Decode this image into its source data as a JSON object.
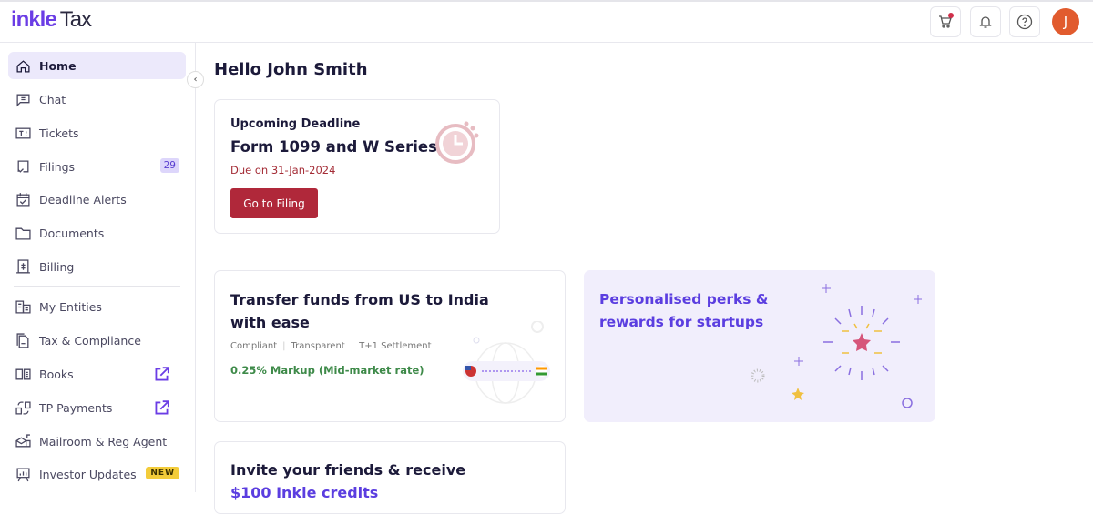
{
  "header": {
    "logo_primary": "inkle",
    "logo_secondary": "Tax",
    "avatar_initial": "J",
    "cart_has_notification": true
  },
  "sidebar": {
    "items": [
      {
        "label": "Home",
        "icon": "home-icon",
        "active": true
      },
      {
        "label": "Chat",
        "icon": "chat-icon"
      },
      {
        "label": "Tickets",
        "icon": "ticket-icon"
      },
      {
        "label": "Filings",
        "icon": "filing-icon",
        "badge": "29"
      },
      {
        "label": "Deadline Alerts",
        "icon": "calendar-check-icon"
      },
      {
        "label": "Documents",
        "icon": "folder-icon"
      },
      {
        "label": "Billing",
        "icon": "billing-icon"
      },
      {
        "label": "My Entities",
        "icon": "building-icon"
      },
      {
        "label": "Tax & Compliance",
        "icon": "documents-icon"
      },
      {
        "label": "Books",
        "icon": "book-icon",
        "external": true
      },
      {
        "label": "TP Payments",
        "icon": "transfer-icon",
        "external": true
      },
      {
        "label": "Mailroom & Reg Agent",
        "icon": "mailbox-icon"
      },
      {
        "label": "Investor Updates",
        "icon": "presentation-icon",
        "badge": "NEW"
      }
    ]
  },
  "main": {
    "greeting": "Hello John Smith",
    "deadline": {
      "label": "Upcoming Deadline",
      "form": "Form 1099 and W Series",
      "due": "Due on 31-Jan-2024",
      "button": "Go to Filing"
    },
    "transfer": {
      "title": "Transfer funds from US to India with ease",
      "tags": [
        "Compliant",
        "Transparent",
        "T+1 Settlement"
      ],
      "markup": "0.25% Markup (Mid-market rate)"
    },
    "perks": {
      "title": "Personalised perks & rewards for startups"
    },
    "invite": {
      "title": "Invite your friends & receive",
      "highlight": "$100 Inkle credits"
    }
  },
  "colors": {
    "accent": "#6b3de5",
    "danger": "#b0283a",
    "success": "#3e8a49",
    "avatar": "#e15b2e"
  }
}
